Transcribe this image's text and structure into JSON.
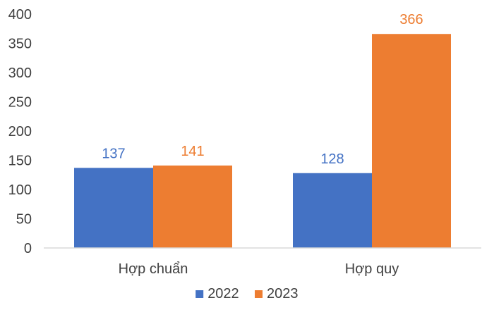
{
  "chart_data": {
    "type": "bar",
    "categories": [
      "Hợp chuẩn",
      "Hợp quy"
    ],
    "series": [
      {
        "name": "2022",
        "values": [
          137,
          128
        ],
        "color": "#4472C4"
      },
      {
        "name": "2023",
        "values": [
          141,
          366
        ],
        "color": "#ED7D31"
      }
    ],
    "ylim": [
      0,
      400
    ],
    "yticks": [
      0,
      50,
      100,
      150,
      200,
      250,
      300,
      350,
      400
    ],
    "grid": false,
    "legend_position": "bottom"
  }
}
